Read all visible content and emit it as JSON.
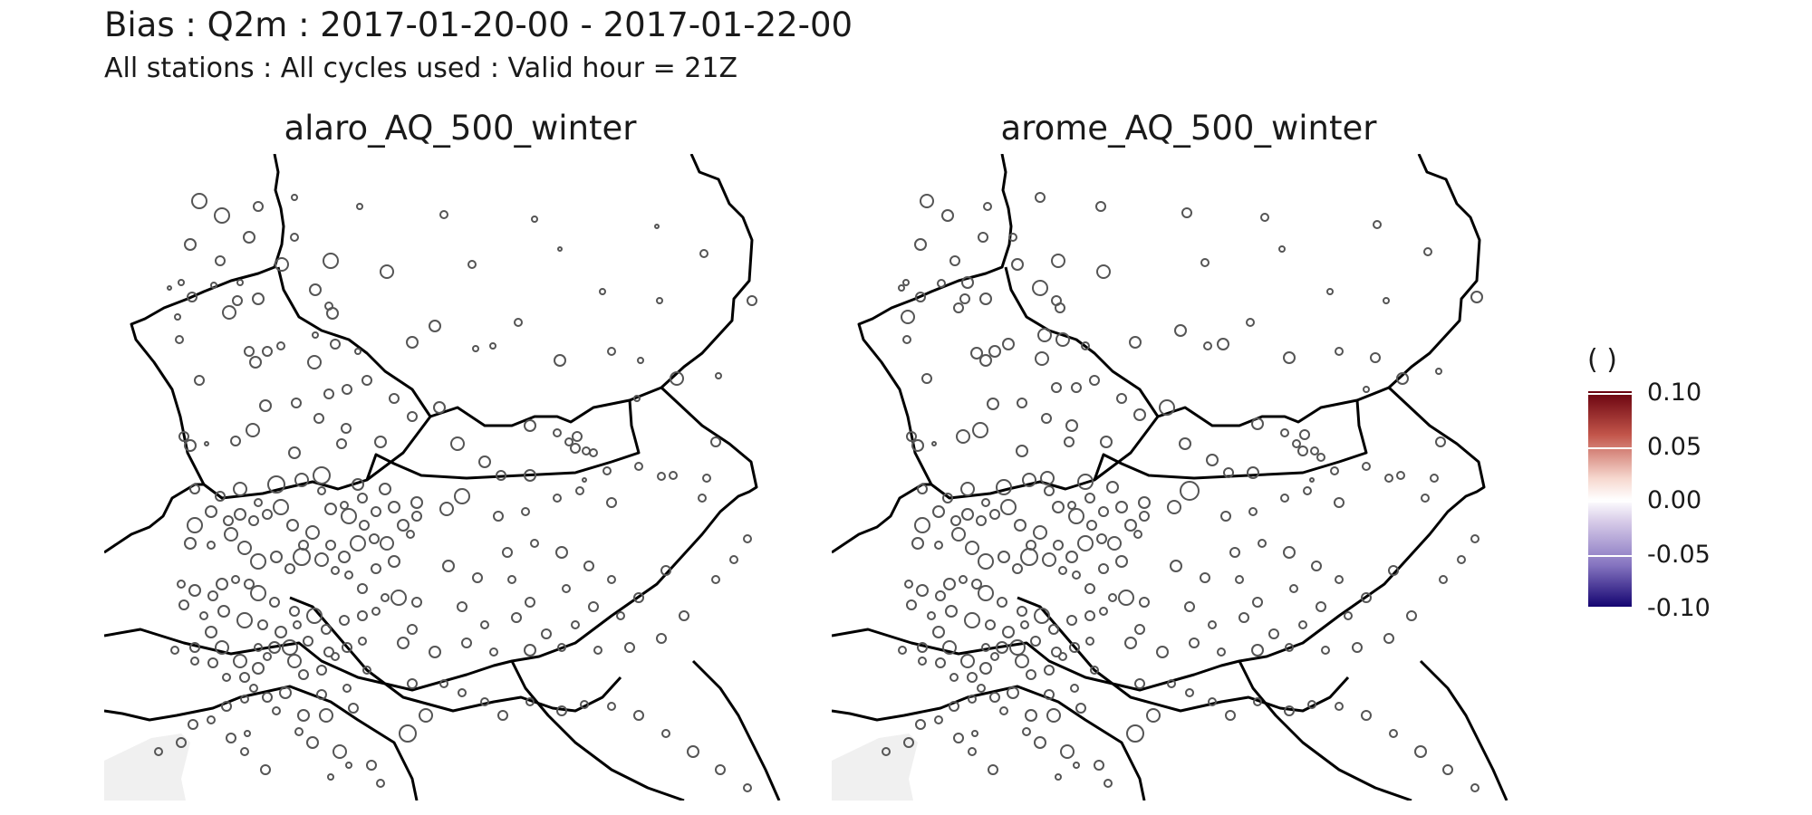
{
  "title": "Bias : Q2m : 2017-01-20-00 - 2017-01-22-00",
  "subtitle": "All stations : All cycles used : Valid hour = 21Z",
  "panels": [
    {
      "name": "alaro_AQ_500_winter"
    },
    {
      "name": "arome_AQ_500_winter"
    }
  ],
  "legend": {
    "title": "( )",
    "ticks": [
      "0.10",
      "0.05",
      "0.00",
      "-0.05",
      "-0.10"
    ],
    "range": [
      -0.1,
      0.1
    ],
    "colors": {
      "high": "#67000d",
      "mid": "#ffffff",
      "low": "#10006e"
    }
  },
  "map_style": {
    "land": "#ffffff",
    "sea": "#f0f0f0",
    "border": "#000000",
    "station_outline": "#555555"
  }
}
